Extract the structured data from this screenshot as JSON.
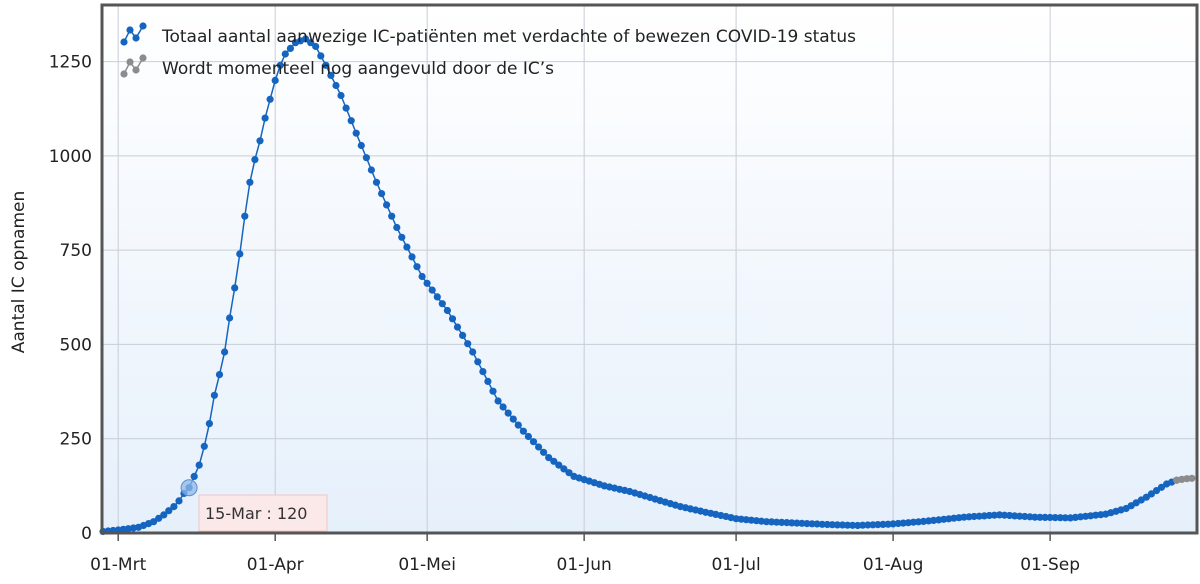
{
  "chart_data": {
    "type": "line",
    "ylabel": "Aantal IC opnamen",
    "xlabel": "",
    "ylim": [
      0,
      1400
    ],
    "yticks": [
      0,
      250,
      500,
      750,
      1000,
      1250
    ],
    "xlim": [
      "2020-02-27",
      "2020-09-30"
    ],
    "xticks": [
      {
        "date": "2020-03-01",
        "label": "01-Mrt"
      },
      {
        "date": "2020-04-01",
        "label": "01-Apr"
      },
      {
        "date": "2020-05-01",
        "label": "01-Mei"
      },
      {
        "date": "2020-06-01",
        "label": "01-Jun"
      },
      {
        "date": "2020-07-01",
        "label": "01-Jul"
      },
      {
        "date": "2020-08-01",
        "label": "01-Aug"
      },
      {
        "date": "2020-09-01",
        "label": "01-Sep"
      }
    ],
    "grid": true,
    "legend_position": "top-left",
    "series": [
      {
        "name": "Totaal aantal aanwezige IC-patiënten met verdachte of bewezen COVID-19 status",
        "color": "#1565c0",
        "points": [
          [
            "2020-02-27",
            4
          ],
          [
            "2020-03-01",
            8
          ],
          [
            "2020-03-05",
            15
          ],
          [
            "2020-03-08",
            30
          ],
          [
            "2020-03-10",
            48
          ],
          [
            "2020-03-12",
            70
          ],
          [
            "2020-03-13",
            85
          ],
          [
            "2020-03-14",
            105
          ],
          [
            "2020-03-15",
            120
          ],
          [
            "2020-03-16",
            150
          ],
          [
            "2020-03-17",
            180
          ],
          [
            "2020-03-18",
            230
          ],
          [
            "2020-03-19",
            290
          ],
          [
            "2020-03-20",
            365
          ],
          [
            "2020-03-21",
            420
          ],
          [
            "2020-03-22",
            480
          ],
          [
            "2020-03-23",
            570
          ],
          [
            "2020-03-24",
            650
          ],
          [
            "2020-03-25",
            740
          ],
          [
            "2020-03-26",
            840
          ],
          [
            "2020-03-27",
            930
          ],
          [
            "2020-03-28",
            990
          ],
          [
            "2020-03-29",
            1040
          ],
          [
            "2020-03-30",
            1100
          ],
          [
            "2020-03-31",
            1150
          ],
          [
            "2020-04-01",
            1200
          ],
          [
            "2020-04-02",
            1240
          ],
          [
            "2020-04-03",
            1270
          ],
          [
            "2020-04-05",
            1300
          ],
          [
            "2020-04-07",
            1310
          ],
          [
            "2020-04-09",
            1290
          ],
          [
            "2020-04-11",
            1240
          ],
          [
            "2020-04-14",
            1160
          ],
          [
            "2020-04-17",
            1060
          ],
          [
            "2020-04-21",
            930
          ],
          [
            "2020-04-25",
            810
          ],
          [
            "2020-04-30",
            680
          ],
          [
            "2020-05-05",
            590
          ],
          [
            "2020-05-10",
            480
          ],
          [
            "2020-05-15",
            350
          ],
          [
            "2020-05-20",
            270
          ],
          [
            "2020-05-25",
            200
          ],
          [
            "2020-05-30",
            150
          ],
          [
            "2020-06-05",
            125
          ],
          [
            "2020-06-10",
            110
          ],
          [
            "2020-06-15",
            90
          ],
          [
            "2020-06-20",
            70
          ],
          [
            "2020-06-25",
            55
          ],
          [
            "2020-07-01",
            38
          ],
          [
            "2020-07-07",
            30
          ],
          [
            "2020-07-15",
            25
          ],
          [
            "2020-07-20",
            22
          ],
          [
            "2020-07-25",
            20
          ],
          [
            "2020-08-01",
            24
          ],
          [
            "2020-08-08",
            32
          ],
          [
            "2020-08-15",
            42
          ],
          [
            "2020-08-22",
            48
          ],
          [
            "2020-08-29",
            42
          ],
          [
            "2020-09-05",
            40
          ],
          [
            "2020-09-12",
            50
          ],
          [
            "2020-09-16",
            65
          ],
          [
            "2020-09-20",
            95
          ],
          [
            "2020-09-24",
            130
          ],
          [
            "2020-09-26",
            140
          ]
        ]
      },
      {
        "name": "Wordt momenteel nog aangevuld door de IC’s",
        "color": "#8c8c8c",
        "points": [
          [
            "2020-09-26",
            140
          ],
          [
            "2020-09-27",
            142
          ],
          [
            "2020-09-28",
            144
          ],
          [
            "2020-09-29",
            145
          ]
        ]
      }
    ],
    "tooltip": {
      "label": "15-Mar : 120",
      "date": "2020-03-15",
      "value": 120
    }
  }
}
